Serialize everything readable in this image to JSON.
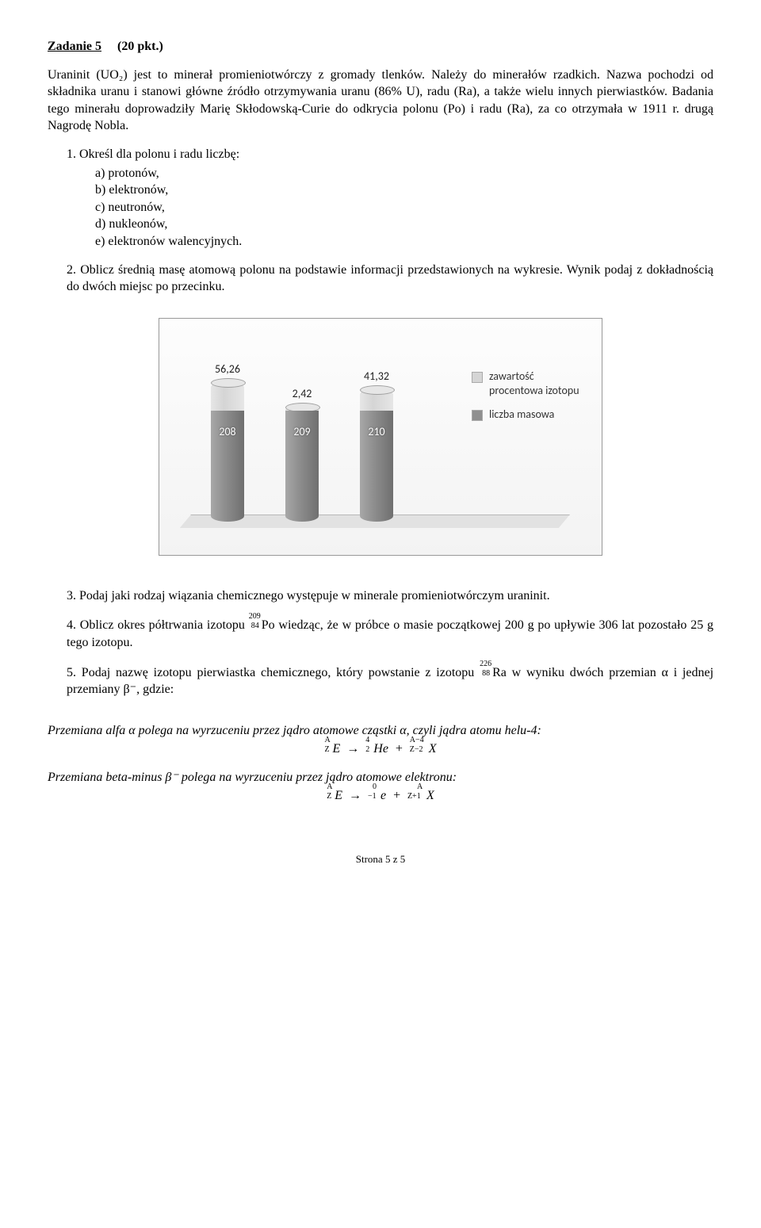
{
  "heading": "Zadanie 5",
  "points": "(20 pkt.)",
  "intro": "Uraninit (UO₂) jest to minerał promieniotwórczy z gromady tlenków. Należy do minerałów rzadkich. Nazwa pochodzi od składnika uranu i stanowi główne źródło otrzymywania uranu (86% U), radu (Ra), a także wielu innych pierwiastków. Badania tego minerału doprowadziły Marię Skłodowską-Curie do odkrycia polonu (Po) i radu (Ra), za co otrzymała w 1911 r. drugą Nagrodę Nobla.",
  "q1": {
    "num": "1.",
    "text": "Określ dla polonu i radu liczbę:",
    "items": [
      "a)  protonów,",
      "b)  elektronów,",
      "c)  neutronów,",
      "d)  nukleonów,",
      "e)  elektronów walencyjnych."
    ]
  },
  "q2": {
    "num": "2.",
    "text": "Oblicz średnią masę atomową polonu na podstawie informacji przedstawionych na wykresie. Wynik podaj z dokładnością do dwóch miejsc po przecinku."
  },
  "chart": {
    "series": [
      {
        "topLabel": "56,26",
        "mass": "208",
        "percent": 56.26
      },
      {
        "topLabel": "2,42",
        "mass": "209",
        "percent": 2.42
      },
      {
        "topLabel": "41,32",
        "mass": "210",
        "percent": 41.32
      }
    ],
    "legend": {
      "percentLabel": "zawartość procentowa izotopu",
      "massLabel": "liczba masowa"
    },
    "colors": {
      "percentFill": "#d5d5d5",
      "percentCap": "#e6e6e6",
      "massFill": "#8f8f8f",
      "massCap": "#a8a8a8",
      "massLabelColor": "#222222",
      "plotBg1": "#fdfdfd",
      "plotBg2": "#f3f3f3",
      "border": "#999999",
      "floor": "#e2e2e2"
    },
    "massBarHeightPx": 140,
    "percentScale": 0.62
  },
  "q3": {
    "num": "3.",
    "text": "Podaj jaki rodzaj wiązania chemicznego występuje w minerale promieniotwórczym uraninit."
  },
  "q4": {
    "num": "4.",
    "pre": "Oblicz okres półtrwania izotopu ",
    "isoA": "209",
    "isoZ": "84",
    "isoSym": "Po",
    "post": " wiedząc, że w próbce o masie początkowej 200 g po upływie 306 lat pozostało 25 g tego izotopu."
  },
  "q5": {
    "num": "5.",
    "pre": "Podaj nazwę izotopu pierwiastka chemicznego, który powstanie z izotopu ",
    "isoA": "226",
    "isoZ": "88",
    "isoSym": "Ra",
    "post": " w wyniku dwóch przemian α i jednej przemiany β⁻, gdzie:"
  },
  "alpha": {
    "intro": "Przemiana alfa α polega na wyrzuceniu przez jądro atomowe cząstki α, czyli jądra atomu helu-4:"
  },
  "beta": {
    "intro": "Przemiana beta-minus β⁻ polega na wyrzuceniu przez jądro atomowe elektronu:"
  },
  "footer": "Strona 5 z 5"
}
